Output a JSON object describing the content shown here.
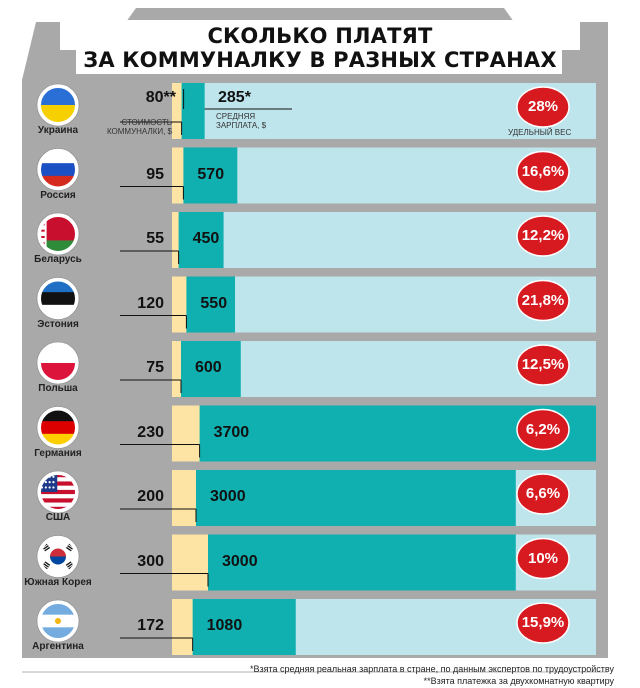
{
  "header": {
    "title_line1": "СКОЛЬКО ПЛАТЯТ",
    "title_line2": "ЗА КОММУНАЛКУ В РАЗНЫХ СТРАНАХ"
  },
  "legend": {
    "utilities_label": "СТОИМОСТЬ КОММУНАЛКИ, $",
    "salary_label": "СРЕДНЯЯ ЗАРПЛАТА, $",
    "share_label": "УДЕЛЬНЫЙ ВЕС"
  },
  "colors": {
    "background_panel": "#a9a9a9",
    "track": "#bfe5ec",
    "salary_fill": "#10b0b0",
    "utilities_fill": "#fde4a5",
    "badge": "#d71920",
    "flag_circle": "#ffffff"
  },
  "countries": [
    {
      "name": "Украина",
      "utilities": "80**",
      "salary": "285*",
      "share": "28%",
      "flag_icon": "flag-ukraine-icon"
    },
    {
      "name": "Россия",
      "utilities": "95",
      "salary": "570",
      "share": "16,6%",
      "flag_icon": "flag-russia-icon"
    },
    {
      "name": "Беларусь",
      "utilities": "55",
      "salary": "450",
      "share": "12,2%",
      "flag_icon": "flag-belarus-icon"
    },
    {
      "name": "Эстония",
      "utilities": "120",
      "salary": "550",
      "share": "21,8%",
      "flag_icon": "flag-estonia-icon"
    },
    {
      "name": "Польша",
      "utilities": "75",
      "salary": "600",
      "share": "12,5%",
      "flag_icon": "flag-poland-icon"
    },
    {
      "name": "Германия",
      "utilities": "230",
      "salary": "3700",
      "share": "6,2%",
      "flag_icon": "flag-germany-icon"
    },
    {
      "name": "США",
      "utilities": "200",
      "salary": "3000",
      "share": "6,6%",
      "flag_icon": "flag-usa-icon"
    },
    {
      "name": "Южная Корея",
      "utilities": "300",
      "salary": "3000",
      "share": "10%",
      "flag_icon": "flag-south-korea-icon"
    },
    {
      "name": "Аргентина",
      "utilities": "172",
      "salary": "1080",
      "share": "15,9%",
      "flag_icon": "flag-argentina-icon"
    }
  ],
  "footnotes": {
    "note1": "*Взята средняя реальная зарплата в стране, по данным экспертов по трудоустройству",
    "note2": "**Взята платежка за двухкомнатную квартиру"
  },
  "chart_data": {
    "type": "bar",
    "categories": [
      "Украина",
      "Россия",
      "Беларусь",
      "Эстония",
      "Польша",
      "Германия",
      "США",
      "Южная Корея",
      "Аргентина"
    ],
    "series": [
      {
        "name": "СТОИМОСТЬ КОММУНАЛКИ, $",
        "values": [
          80,
          95,
          55,
          120,
          75,
          230,
          200,
          300,
          172
        ]
      },
      {
        "name": "СРЕДНЯЯ ЗАРПЛАТА, $",
        "values": [
          285,
          570,
          450,
          550,
          600,
          3700,
          3000,
          3000,
          1080
        ]
      },
      {
        "name": "УДЕЛЬНЫЙ ВЕС",
        "values": [
          28,
          16.6,
          12.2,
          21.8,
          12.5,
          6.2,
          6.6,
          10,
          15.9
        ]
      }
    ],
    "title": "СКОЛЬКО ПЛАТЯТ ЗА КОММУНАЛКУ В РАЗНЫХ СТРАНАХ",
    "orientation": "horizontal"
  }
}
